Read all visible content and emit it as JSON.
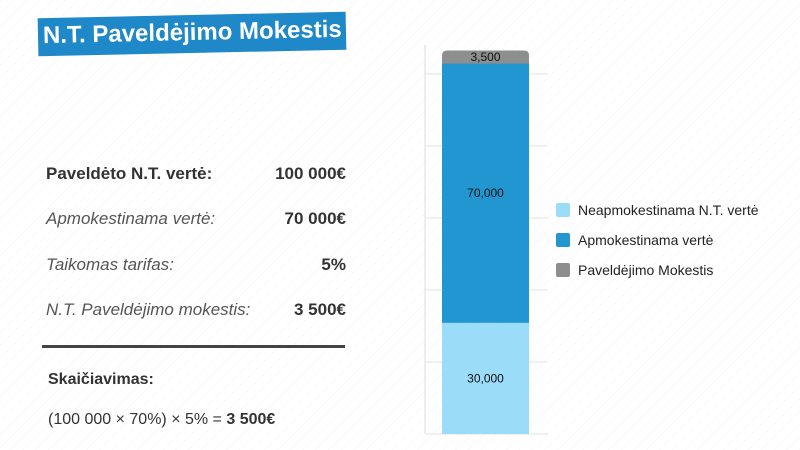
{
  "title": "N.T. Paveldėjimo Mokestis",
  "rows": [
    {
      "label": "Paveldėto N.T. vertė:",
      "value": "100 000€",
      "style": "bold"
    },
    {
      "label": "Apmokestinama vertė:",
      "value": "70 000€",
      "style": "italic"
    },
    {
      "label": "Taikomas tarifas:",
      "value": "5%",
      "style": "italic"
    },
    {
      "label": "N.T. Paveldėjimo mokestis:",
      "value": "3 500€",
      "style": "italic"
    }
  ],
  "calc": {
    "title": "Skaičiavimas:",
    "formula_prefix": "(100 000 × 70%) × 5% =",
    "formula_result": "3 500€"
  },
  "chart_data": {
    "type": "bar",
    "stacked": true,
    "categories": [
      ""
    ],
    "ylim": [
      0,
      105000
    ],
    "grid": true,
    "legend_position": "right",
    "series": [
      {
        "name": "Neapmokestinama N.T. vertė",
        "values": [
          30000
        ],
        "label": "30,000",
        "color": "#9bdcf9"
      },
      {
        "name": "Apmokestinama vertė",
        "values": [
          70000
        ],
        "label": "70,000",
        "color": "#2196d0"
      },
      {
        "name": "Paveldėjimo Mokestis",
        "values": [
          3500
        ],
        "label": "3,500",
        "color": "#8e8e8e"
      }
    ]
  }
}
